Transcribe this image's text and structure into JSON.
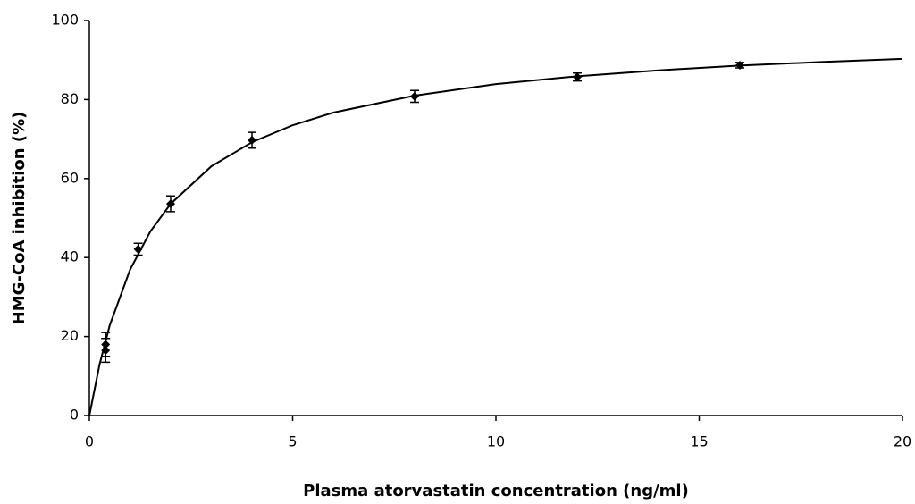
{
  "chart_data": {
    "type": "scatter",
    "x_label": "Plasma atorvastatin concentration (ng/ml)",
    "y_label": "HMG-CoA inhibition (%)",
    "xlim": [
      0,
      20
    ],
    "xticks": [
      0,
      5,
      10,
      15,
      20
    ],
    "ylim": [
      0,
      100
    ],
    "yticks": [
      0,
      20,
      40,
      60,
      80,
      100
    ],
    "series": [
      {
        "x": [
          0.4,
          0.4,
          1.2,
          2,
          4,
          8,
          12,
          16
        ],
        "values": [
          16.5,
          18,
          42.1,
          53.6,
          69.7,
          80.8,
          85.7,
          88.7
        ],
        "errors": [
          3,
          3,
          1.5,
          2,
          2,
          1.5,
          1,
          0.7
        ],
        "color": "#000000"
      },
      {
        "type": "line",
        "x": [
          0,
          0.25,
          0.5,
          1,
          1.5,
          2,
          3,
          4,
          5,
          6,
          8,
          10,
          12,
          14,
          16,
          18,
          20
        ],
        "values": [
          0,
          12.9,
          22.8,
          36.9,
          46.6,
          53.6,
          63.1,
          69.2,
          73.5,
          76.7,
          81.0,
          83.9,
          85.9,
          87.4,
          88.6,
          89.5,
          90.3
        ],
        "color": "#000000"
      }
    ]
  }
}
